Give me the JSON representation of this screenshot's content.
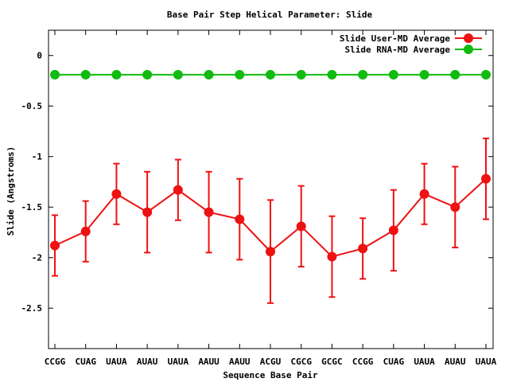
{
  "chart_data": {
    "type": "line",
    "title": "Base Pair Step Helical Parameter: Slide",
    "xlabel": "Sequence Base Pair",
    "ylabel": "Slide (Angstroms)",
    "ylim": [
      -2.9,
      0.25
    ],
    "yticks": [
      0,
      -0.5,
      -1,
      -1.5,
      -2,
      -2.5
    ],
    "ytick_labels": [
      "0",
      "-0.5",
      "-1",
      "-1.5",
      "-2",
      "-2.5"
    ],
    "categories": [
      "CCGG",
      "CUAG",
      "UAUA",
      "AUAU",
      "UAUA",
      "AAUU",
      "AAUU",
      "ACGU",
      "CGCG",
      "GCGC",
      "CCGG",
      "CUAG",
      "UAUA",
      "AUAU",
      "UAUA"
    ],
    "legend_position": "top-right",
    "grid": false,
    "series": [
      {
        "name": "Slide User-MD Average",
        "color": "#ee1111",
        "values": [
          -1.88,
          -1.74,
          -1.37,
          -1.55,
          -1.33,
          -1.55,
          -1.62,
          -1.94,
          -1.69,
          -1.99,
          -1.91,
          -1.73,
          -1.37,
          -1.5,
          -1.22
        ],
        "errors": [
          0.3,
          0.3,
          0.3,
          0.4,
          0.3,
          0.4,
          0.4,
          0.51,
          0.4,
          0.4,
          0.3,
          0.4,
          0.3,
          0.4,
          0.4
        ]
      },
      {
        "name": "Slide RNA-MD Average",
        "color": "#11bb11",
        "values": [
          -0.19,
          -0.19,
          -0.19,
          -0.19,
          -0.19,
          -0.19,
          -0.19,
          -0.19,
          -0.19,
          -0.19,
          -0.19,
          -0.19,
          -0.19,
          -0.19,
          -0.19
        ]
      }
    ]
  }
}
